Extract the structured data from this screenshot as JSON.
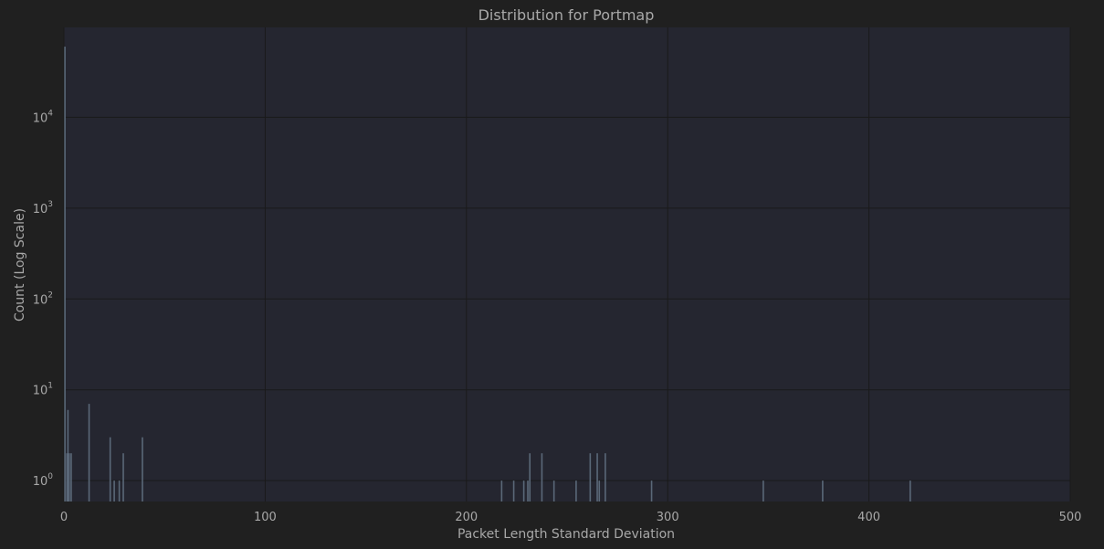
{
  "chart_data": {
    "type": "bar",
    "title": "Distribution for Portmap",
    "xlabel": "Packet Length Standard Deviation",
    "ylabel": "Count (Log Scale)",
    "xlim": [
      0,
      500
    ],
    "ylim_log10": [
      -0.23,
      4.99
    ],
    "y_scale": "log",
    "grid": true,
    "x_ticks": [
      "0",
      "100",
      "200",
      "300",
      "400",
      "500"
    ],
    "y_ticks": [
      {
        "value": 1,
        "base": "10",
        "exp": "0"
      },
      {
        "value": 10,
        "base": "10",
        "exp": "1"
      },
      {
        "value": 100,
        "base": "10",
        "exp": "2"
      },
      {
        "value": 1000,
        "base": "10",
        "exp": "3"
      },
      {
        "value": 10000,
        "base": "10",
        "exp": "4"
      }
    ],
    "colors": {
      "background": "#202020",
      "plot_area": "#252630",
      "grid": "#1a1a1a",
      "bar": "#5a6878",
      "text": "#a8a8a8"
    },
    "bins": [
      {
        "x": 0.5,
        "count": 60000
      },
      {
        "x": 1.5,
        "count": 2
      },
      {
        "x": 2.0,
        "count": 6
      },
      {
        "x": 2.6,
        "count": 2
      },
      {
        "x": 3.6,
        "count": 2
      },
      {
        "x": 12.5,
        "count": 7
      },
      {
        "x": 23.0,
        "count": 3
      },
      {
        "x": 25.0,
        "count": 1
      },
      {
        "x": 27.5,
        "count": 1
      },
      {
        "x": 29.5,
        "count": 2
      },
      {
        "x": 39.0,
        "count": 3
      },
      {
        "x": 217.5,
        "count": 1
      },
      {
        "x": 223.5,
        "count": 1
      },
      {
        "x": 228.5,
        "count": 1
      },
      {
        "x": 230.5,
        "count": 1
      },
      {
        "x": 231.5,
        "count": 2
      },
      {
        "x": 237.5,
        "count": 2
      },
      {
        "x": 243.5,
        "count": 1
      },
      {
        "x": 254.5,
        "count": 1
      },
      {
        "x": 261.5,
        "count": 2
      },
      {
        "x": 265.0,
        "count": 2
      },
      {
        "x": 266.0,
        "count": 1
      },
      {
        "x": 269.0,
        "count": 2
      },
      {
        "x": 292.0,
        "count": 1
      },
      {
        "x": 347.5,
        "count": 1
      },
      {
        "x": 377.0,
        "count": 1
      },
      {
        "x": 420.5,
        "count": 1
      }
    ]
  }
}
